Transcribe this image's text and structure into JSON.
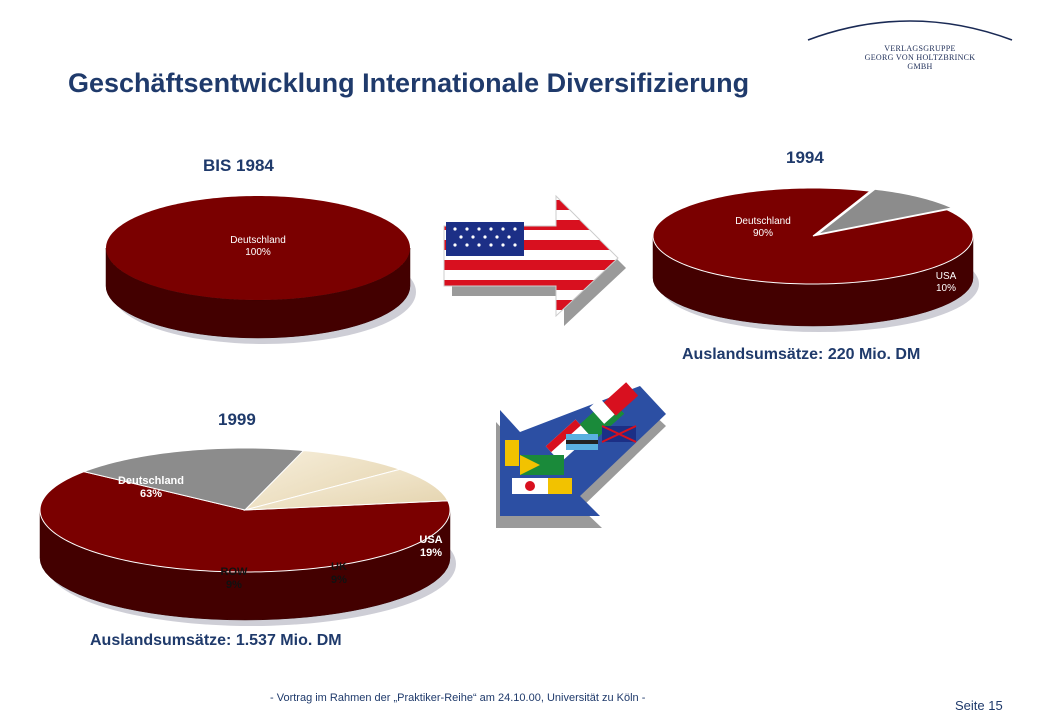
{
  "logo": {
    "line1": "VERLAGSGRUPPE",
    "line2": "GEORG VON HOLTZBRINCK",
    "line3": "GMBH"
  },
  "title": "Geschäftsentwicklung Internationale Diversifizierung",
  "colors": {
    "deutschland": "#7a0000",
    "usa": "#8c8c8c",
    "uk": "#e9dcc0",
    "row": "#f2e8d0",
    "title": "#1f3a6b"
  },
  "icons": [
    "usa-flag-arrow-icon",
    "flags-arrow-icon"
  ],
  "chart_data": [
    {
      "type": "pie",
      "title": "BIS 1984",
      "categories": [
        "Deutschland"
      ],
      "labels": [
        "100%"
      ],
      "values": [
        100
      ]
    },
    {
      "type": "pie",
      "title": "1994",
      "categories": [
        "Deutschland",
        "USA"
      ],
      "labels": [
        "90%",
        "10%"
      ],
      "values": [
        90,
        10
      ],
      "annotation": "Auslandsumsätze: 220 Mio. DM"
    },
    {
      "type": "pie",
      "title": "1999",
      "categories": [
        "Deutschland",
        "USA",
        "UK",
        "ROW"
      ],
      "labels": [
        "63%",
        "19%",
        "9%",
        "9%"
      ],
      "values": [
        63,
        19,
        9,
        9
      ],
      "annotation": "Auslandsumsätze: 1.537 Mio. DM"
    }
  ],
  "footer": {
    "text": "- Vortrag im Rahmen der „Praktiker-Reihe“ am 24.10.00, Universität zu Köln -",
    "page": "Seite 15"
  }
}
